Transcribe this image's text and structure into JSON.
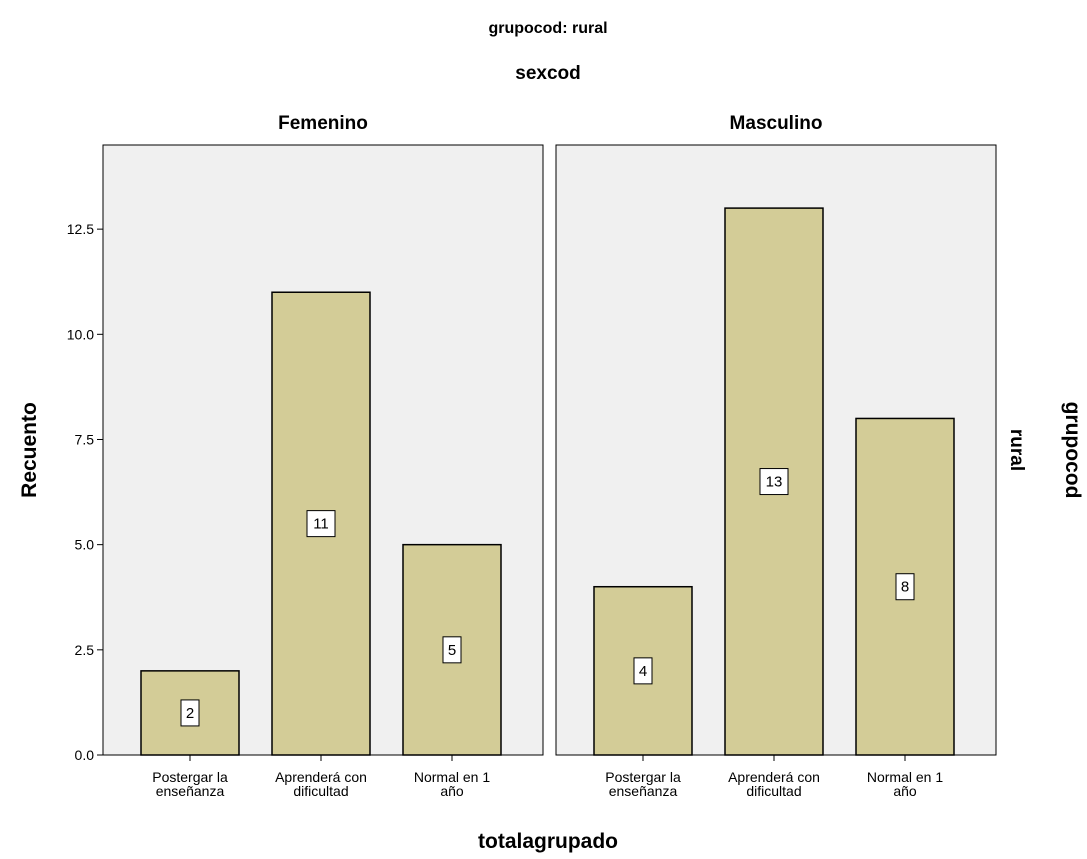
{
  "chart_data": {
    "type": "bar",
    "title": "grupocod: rural",
    "panel_header_title": "sexcod",
    "row_strip_title": "grupocod",
    "row_strip_value": "rural",
    "xlabel": "totalagrupado",
    "ylabel": "Recuento",
    "ylim": [
      0,
      14.5
    ],
    "yticks": [
      "0.0",
      "2.5",
      "5.0",
      "7.5",
      "10.0",
      "12.5"
    ],
    "ytick_values": [
      0,
      2.5,
      5,
      7.5,
      10,
      12.5
    ],
    "categories": [
      [
        "Postergar la",
        "enseñanza"
      ],
      [
        "Aprenderá con",
        "dificultad"
      ],
      [
        "Normal en 1",
        "año"
      ]
    ],
    "panels": [
      {
        "name": "Femenino",
        "values": [
          2,
          11,
          5
        ]
      },
      {
        "name": "Masculino",
        "values": [
          4,
          13,
          8
        ]
      }
    ],
    "grid": false,
    "legend": "none",
    "colors": {
      "bar": "#d3cc97",
      "panel_bg": "#f0f0f0",
      "frame": "#000000"
    }
  }
}
